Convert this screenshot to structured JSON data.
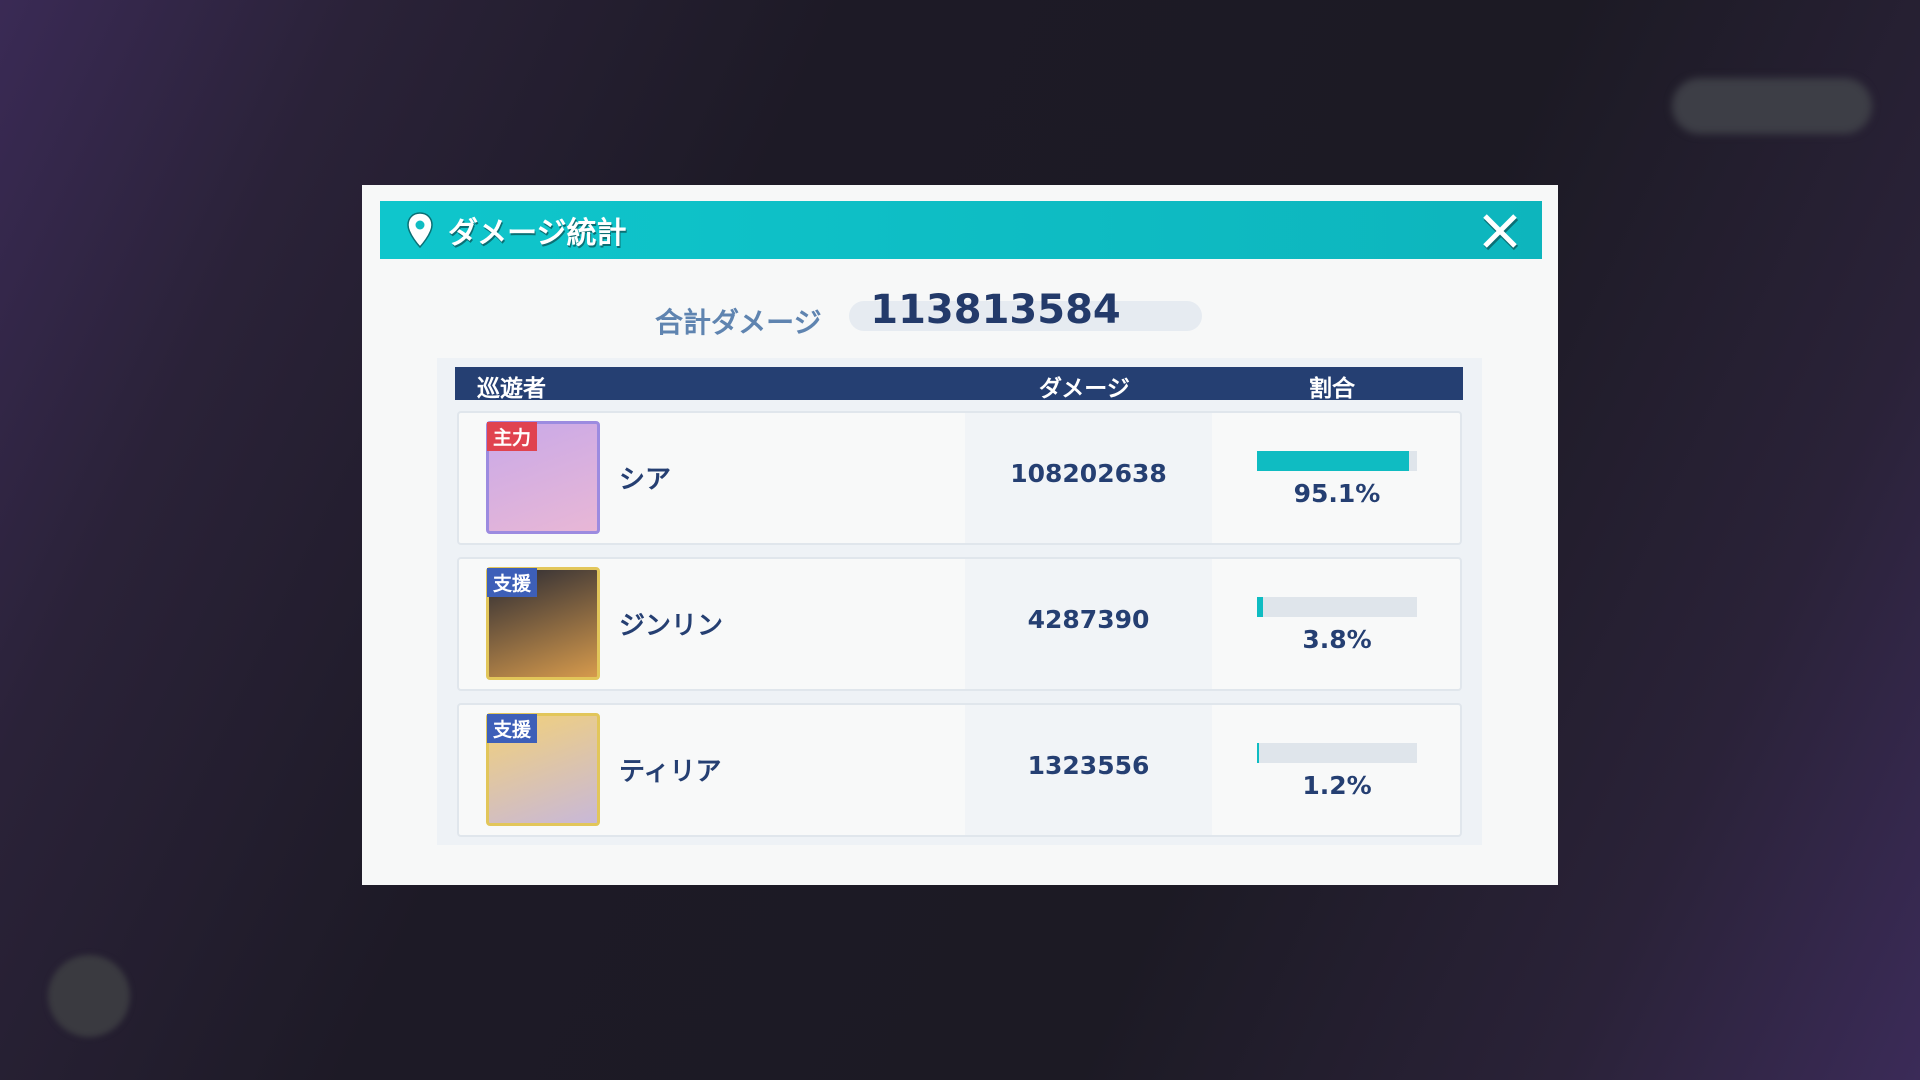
{
  "dialog": {
    "title": "ダメージ統計",
    "icon": "location-pin-icon",
    "close_icon": "close-icon",
    "accent": "#0fc6cc"
  },
  "total": {
    "label": "合計ダメージ",
    "value": "113813584"
  },
  "table": {
    "headers": {
      "character": "巡遊者",
      "damage": "ダメージ",
      "share": "割合"
    },
    "rows": [
      {
        "role": "主力",
        "role_color": "#e0434f",
        "name": "シア",
        "damage": "108202638",
        "share": "95.1%",
        "share_value": 95.1,
        "frame": "#9c8be0",
        "portrait": [
          "#c9a9e8",
          "#e8b7d6"
        ]
      },
      {
        "role": "支援",
        "role_color": "#3d5fb8",
        "name": "ジンリン",
        "damage": "4287390",
        "share": "3.8%",
        "share_value": 3.8,
        "frame": "#e2c65a",
        "portrait": [
          "#2a2a33",
          "#d69a4c"
        ]
      },
      {
        "role": "支援",
        "role_color": "#3d5fb8",
        "name": "ティリア",
        "damage": "1323556",
        "share": "1.2%",
        "share_value": 1.2,
        "frame": "#e2c65a",
        "portrait": [
          "#f2d17a",
          "#c8b8d8"
        ]
      }
    ]
  }
}
